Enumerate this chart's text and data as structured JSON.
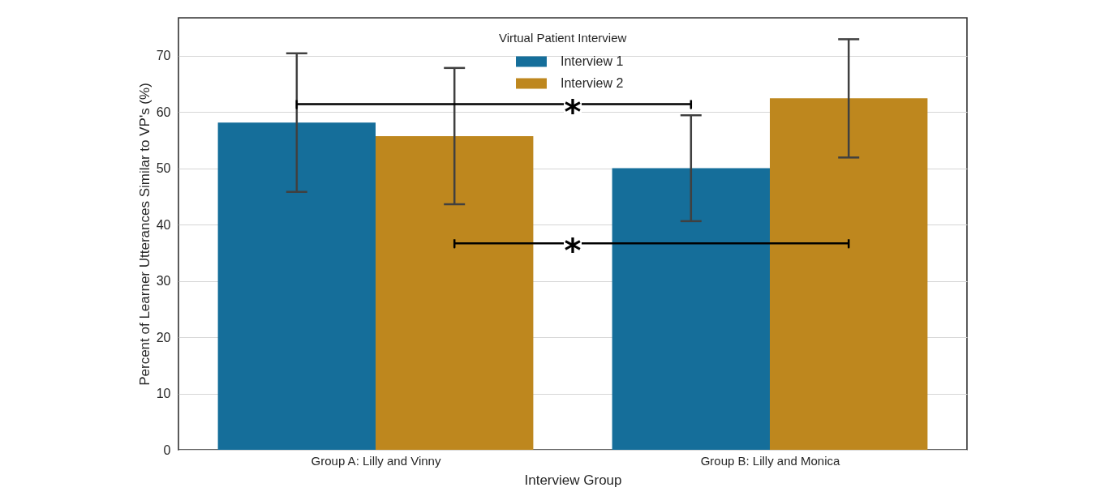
{
  "chart_data": {
    "type": "bar",
    "xlabel": "Interview Group",
    "ylabel": "Percent of Learner Utterances Similar to VP's (%)",
    "legend_title": "Virtual Patient Interview",
    "categories": [
      "Group A: Lilly and Vinny",
      "Group B: Lilly and Monica"
    ],
    "series": [
      {
        "name": "Interview 1",
        "color": "#156e9a",
        "values": [
          58.1,
          50.0
        ],
        "errors": [
          12.3,
          9.4
        ]
      },
      {
        "name": "Interview 2",
        "color": "#be871e",
        "values": [
          55.7,
          62.4
        ],
        "errors": [
          12.1,
          10.5
        ]
      }
    ],
    "ylim": [
      0,
      76.7
    ],
    "yticks": [
      0,
      10,
      20,
      30,
      40,
      50,
      60,
      70
    ],
    "grid": "y",
    "legend": "top",
    "annotations": [
      "*",
      "*"
    ]
  }
}
